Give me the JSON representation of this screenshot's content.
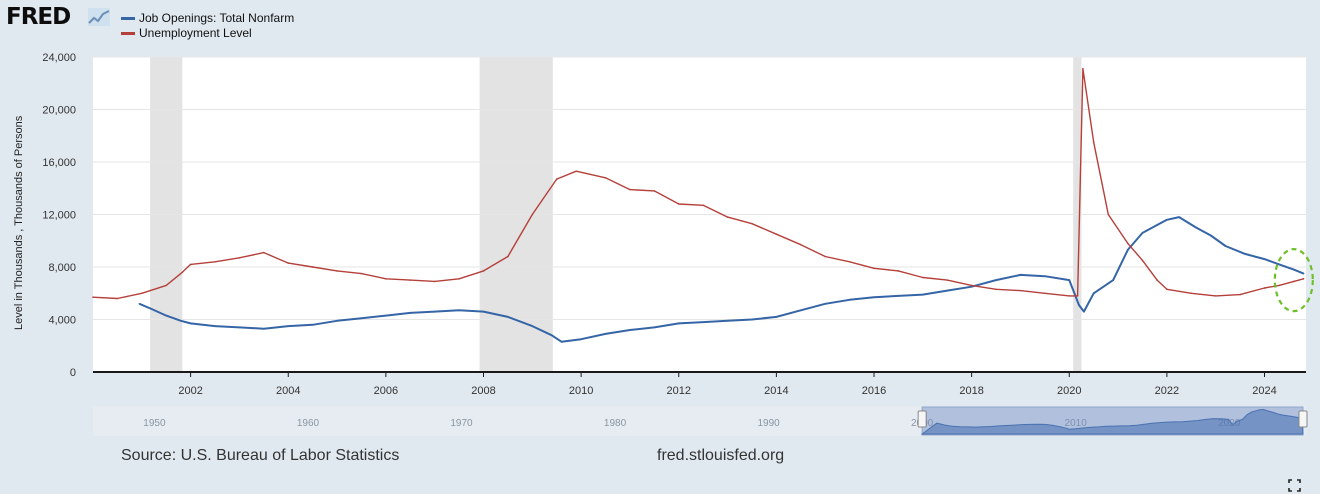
{
  "header": {
    "logo_text": "FRED"
  },
  "legend": [
    {
      "label": "Job Openings: Total Nonfarm",
      "color": "#3565a6"
    },
    {
      "label": "Unemployment Level",
      "color": "#b5403a"
    }
  ],
  "footer": {
    "source": "Source: U.S. Bureau of Labor Statistics",
    "site": "fred.stlouisfed.org"
  },
  "navigator": {
    "tick_labels": [
      "1950",
      "1960",
      "1970",
      "1980",
      "1990",
      "2000",
      "2010",
      "2020"
    ]
  },
  "highlight_annotation": {
    "shape": "dashed-ellipse",
    "color": "#6fbf2a",
    "x": 2024.6,
    "y": 7000
  },
  "chart_data": {
    "type": "line",
    "ylabel": "Level in Thousands , Thousands of Persons",
    "xlim": [
      2000.0,
      2024.85
    ],
    "ylim": [
      0,
      24000
    ],
    "yticks": [
      0,
      4000,
      8000,
      12000,
      16000,
      20000,
      24000
    ],
    "ytick_labels": [
      "0",
      "4,000",
      "8,000",
      "12,000",
      "16,000",
      "20,000",
      "24,000"
    ],
    "xticks": [
      2002,
      2004,
      2006,
      2008,
      2010,
      2012,
      2014,
      2016,
      2018,
      2020,
      2022,
      2024
    ],
    "xtick_labels": [
      "2002",
      "2004",
      "2006",
      "2008",
      "2010",
      "2012",
      "2014",
      "2016",
      "2018",
      "2020",
      "2022",
      "2024"
    ],
    "grid": true,
    "legend_position": "top-left",
    "recessions": [
      [
        2001.17,
        2001.83
      ],
      [
        2007.92,
        2009.42
      ],
      [
        2020.08,
        2020.25
      ]
    ],
    "series": [
      {
        "name": "Job Openings: Total Nonfarm",
        "color": "#3565a6",
        "x": [
          2000.95,
          2001.2,
          2001.5,
          2001.8,
          2002.0,
          2002.5,
          2003.0,
          2003.5,
          2004.0,
          2004.5,
          2005.0,
          2005.5,
          2006.0,
          2006.5,
          2007.0,
          2007.5,
          2008.0,
          2008.5,
          2009.0,
          2009.4,
          2009.6,
          2010.0,
          2010.5,
          2011.0,
          2011.5,
          2012.0,
          2012.5,
          2013.0,
          2013.5,
          2014.0,
          2014.5,
          2015.0,
          2015.5,
          2016.0,
          2016.5,
          2017.0,
          2017.5,
          2018.0,
          2018.5,
          2019.0,
          2019.5,
          2020.0,
          2020.2,
          2020.3,
          2020.5,
          2020.9,
          2021.2,
          2021.5,
          2021.8,
          2022.0,
          2022.25,
          2022.6,
          2022.9,
          2023.2,
          2023.6,
          2024.0,
          2024.3,
          2024.6,
          2024.8
        ],
        "values": [
          5200,
          4800,
          4300,
          3900,
          3700,
          3500,
          3400,
          3300,
          3500,
          3600,
          3900,
          4100,
          4300,
          4500,
          4600,
          4700,
          4600,
          4200,
          3500,
          2800,
          2300,
          2500,
          2900,
          3200,
          3400,
          3700,
          3800,
          3900,
          4000,
          4200,
          4700,
          5200,
          5500,
          5700,
          5800,
          5900,
          6200,
          6500,
          7000,
          7400,
          7300,
          7000,
          5100,
          4600,
          6000,
          7000,
          9300,
          10600,
          11200,
          11600,
          11800,
          11000,
          10400,
          9600,
          9000,
          8600,
          8200,
          7800,
          7500
        ]
      },
      {
        "name": "Unemployment Level",
        "color": "#b5403a",
        "x": [
          2000.0,
          2000.5,
          2001.0,
          2001.5,
          2001.83,
          2002.0,
          2002.5,
          2003.0,
          2003.5,
          2004.0,
          2004.5,
          2005.0,
          2005.5,
          2006.0,
          2006.5,
          2007.0,
          2007.5,
          2008.0,
          2008.5,
          2009.0,
          2009.5,
          2009.9,
          2010.5,
          2011.0,
          2011.5,
          2012.0,
          2012.5,
          2013.0,
          2013.5,
          2014.0,
          2014.5,
          2015.0,
          2015.5,
          2016.0,
          2016.5,
          2017.0,
          2017.5,
          2018.0,
          2018.5,
          2019.0,
          2019.5,
          2020.0,
          2020.17,
          2020.28,
          2020.5,
          2020.8,
          2021.2,
          2021.5,
          2021.8,
          2022.0,
          2022.5,
          2023.0,
          2023.5,
          2024.0,
          2024.3,
          2024.6,
          2024.8
        ],
        "values": [
          5700,
          5600,
          6000,
          6600,
          7600,
          8200,
          8400,
          8700,
          9100,
          8300,
          8000,
          7700,
          7500,
          7100,
          7000,
          6900,
          7100,
          7700,
          8800,
          12000,
          14700,
          15300,
          14800,
          13900,
          13800,
          12800,
          12700,
          11800,
          11300,
          10500,
          9700,
          8800,
          8400,
          7900,
          7700,
          7200,
          7000,
          6600,
          6300,
          6200,
          6000,
          5800,
          5800,
          23100,
          17500,
          12000,
          9800,
          8500,
          7000,
          6300,
          6000,
          5800,
          5900,
          6400,
          6600,
          6900,
          7100
        ]
      }
    ]
  }
}
